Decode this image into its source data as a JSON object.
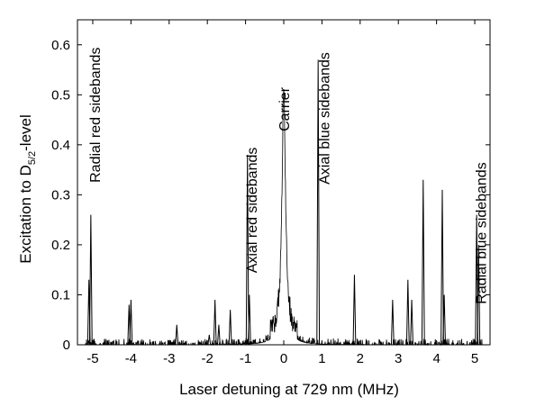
{
  "chart_data": {
    "type": "line",
    "xlabel": "Laser detuning at 729 nm (MHz)",
    "ylabel": {
      "prefix": "Excitation to D",
      "subscript": "5/2",
      "suffix": "-level"
    },
    "xlim": [
      -5.4,
      5.4
    ],
    "ylim": [
      0,
      0.65
    ],
    "xticks": [
      -5,
      -4,
      -3,
      -2,
      -1,
      0,
      1,
      2,
      3,
      4,
      5
    ],
    "xtick_labels": [
      "-5",
      "-4",
      "-3",
      "-2",
      "-1",
      "0",
      "1",
      "2",
      "3",
      "4",
      "5"
    ],
    "yticks": [
      0,
      0.1,
      0.2,
      0.3,
      0.4,
      0.5,
      0.6
    ],
    "ytick_labels": [
      "0",
      "0.1",
      "0.2",
      "0.3",
      "0.4",
      "0.5",
      "0.6"
    ],
    "grid": false,
    "series": [
      {
        "color": "#000000",
        "peaks": [
          {
            "x": -5.1,
            "y": 0.13
          },
          {
            "x": -5.05,
            "y": 0.26
          },
          {
            "x": -4.05,
            "y": 0.08
          },
          {
            "x": -4.0,
            "y": 0.09
          },
          {
            "x": -2.8,
            "y": 0.04
          },
          {
            "x": -1.95,
            "y": 0.02
          },
          {
            "x": -1.8,
            "y": 0.09
          },
          {
            "x": -1.7,
            "y": 0.04
          },
          {
            "x": -1.4,
            "y": 0.07
          },
          {
            "x": -0.95,
            "y": 0.38
          },
          {
            "x": -0.9,
            "y": 0.1
          },
          {
            "x": 0.9,
            "y": 0.57
          },
          {
            "x": 1.85,
            "y": 0.14
          },
          {
            "x": 2.85,
            "y": 0.09
          },
          {
            "x": 3.25,
            "y": 0.13
          },
          {
            "x": 3.35,
            "y": 0.09
          },
          {
            "x": 3.65,
            "y": 0.33
          },
          {
            "x": 4.15,
            "y": 0.31
          },
          {
            "x": 4.2,
            "y": 0.1
          },
          {
            "x": 5.05,
            "y": 0.26
          },
          {
            "x": 5.1,
            "y": 0.2
          }
        ],
        "carrier": {
          "x": 0.0,
          "y": 0.5,
          "width": 0.12
        }
      }
    ],
    "annotations": [
      {
        "text": "Radial red sidebands",
        "x": -4.95,
        "y": 0.595
      },
      {
        "text": "Axial red sidebands",
        "x": -0.85,
        "y": 0.395
      },
      {
        "text": "Carrier",
        "x": 0.0,
        "y": 0.515
      },
      {
        "text": "Axial blue sidebands",
        "x": 1.05,
        "y": 0.585
      },
      {
        "text": "Radial blue sidebands",
        "x": 5.15,
        "y": 0.365
      }
    ]
  }
}
